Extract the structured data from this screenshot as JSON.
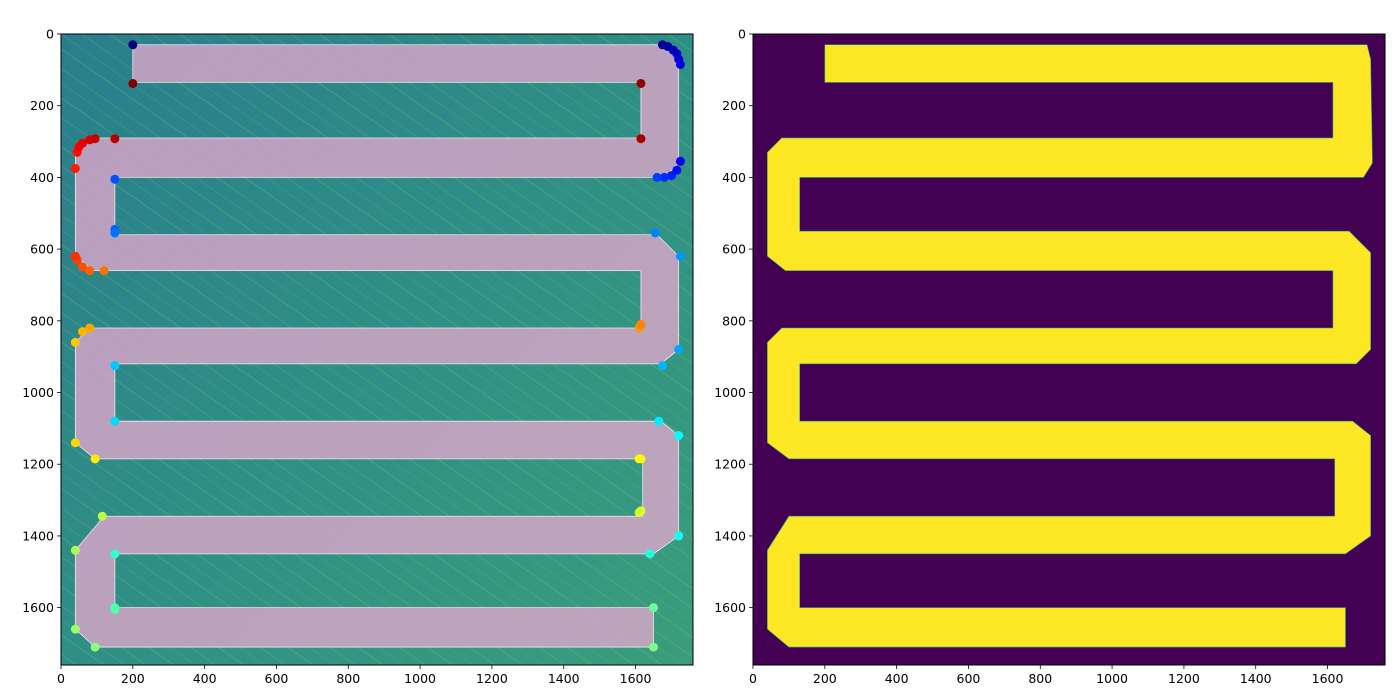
{
  "chart_data": [
    {
      "type": "scatter",
      "background": "grayscale image with viridis colormap and translucent pink serpentine channel overlay",
      "xlim": [
        0,
        1760
      ],
      "ylim": [
        1760,
        0
      ],
      "xticks": [
        0,
        200,
        400,
        600,
        800,
        1000,
        1200,
        1400,
        1600
      ],
      "xtick_labels": [
        "0",
        "200",
        "400",
        "600",
        "800",
        "1000",
        "1200",
        "1400",
        "1600"
      ],
      "yticks": [
        0,
        200,
        400,
        600,
        800,
        1000,
        1200,
        1400,
        1600
      ],
      "ytick_labels": [
        "0",
        "200",
        "400",
        "600",
        "800",
        "1000",
        "1200",
        "1400",
        "1600"
      ],
      "colors": {
        "image_background": "#2f8c8c",
        "channel_overlay": "#d9a6c9",
        "point_colormap": "jet"
      },
      "channel_path": [
        [
          200,
          30
        ],
        [
          1680,
          30
        ],
        [
          1720,
          70
        ],
        [
          1720,
          360
        ],
        [
          1680,
          400
        ],
        [
          150,
          400
        ],
        [
          150,
          560
        ],
        [
          1660,
          560
        ],
        [
          1720,
          620
        ],
        [
          1720,
          880
        ],
        [
          1670,
          920
        ],
        [
          150,
          920
        ],
        [
          150,
          1080
        ],
        [
          1670,
          1080
        ],
        [
          1720,
          1120
        ],
        [
          1720,
          1400
        ],
        [
          1650,
          1450
        ],
        [
          150,
          1450
        ],
        [
          150,
          1600
        ],
        [
          1650,
          1600
        ],
        [
          1650,
          1710
        ],
        [
          95,
          1710
        ],
        [
          40,
          1660
        ],
        [
          40,
          1440
        ],
        [
          120,
          1345
        ],
        [
          1620,
          1345
        ],
        [
          1620,
          1185
        ],
        [
          95,
          1185
        ],
        [
          40,
          1140
        ],
        [
          40,
          860
        ],
        [
          80,
          820
        ],
        [
          1615,
          820
        ],
        [
          1615,
          660
        ],
        [
          90,
          660
        ],
        [
          40,
          620
        ],
        [
          40,
          330
        ],
        [
          80,
          290
        ],
        [
          1615,
          290
        ],
        [
          1615,
          135
        ],
        [
          200,
          135
        ]
      ],
      "points": {
        "x": [
          200,
          1675,
          1690,
          1705,
          1715,
          1720,
          1725,
          1725,
          1715,
          1700,
          1680,
          1660,
          150,
          150,
          150,
          1655,
          1725,
          1720,
          1675,
          150,
          150,
          1665,
          1720,
          1720,
          1640,
          150,
          150,
          150,
          1650,
          1650,
          95,
          40,
          40,
          115,
          1610,
          1615,
          1615,
          1610,
          95,
          40,
          40,
          60,
          80,
          1610,
          1615,
          120,
          80,
          60,
          45,
          40,
          40,
          45,
          50,
          60,
          80,
          95,
          150,
          1615,
          1615,
          200
        ],
        "y": [
          30,
          30,
          35,
          45,
          55,
          70,
          85,
          355,
          380,
          395,
          400,
          400,
          405,
          545,
          555,
          555,
          620,
          880,
          925,
          925,
          1080,
          1080,
          1120,
          1400,
          1450,
          1450,
          1600,
          1605,
          1600,
          1710,
          1710,
          1660,
          1440,
          1345,
          1335,
          1330,
          1185,
          1185,
          1185,
          1140,
          860,
          830,
          820,
          820,
          810,
          660,
          660,
          650,
          630,
          620,
          375,
          330,
          315,
          305,
          295,
          292,
          292,
          292,
          138,
          138
        ],
        "color_order": "first point dark blue through cyan, green, yellow, orange, red to last point dark red (jet colormap by index)"
      }
    },
    {
      "type": "heatmap",
      "background": "binary mask with viridis colormap",
      "xlim": [
        0,
        1760
      ],
      "ylim": [
        1760,
        0
      ],
      "xticks": [
        0,
        200,
        400,
        600,
        800,
        1000,
        1200,
        1400,
        1600
      ],
      "xtick_labels": [
        "0",
        "200",
        "400",
        "600",
        "800",
        "1000",
        "1200",
        "1400",
        "1600"
      ],
      "yticks": [
        0,
        200,
        400,
        600,
        800,
        1000,
        1200,
        1400,
        1600
      ],
      "ytick_labels": [
        "0",
        "200",
        "400",
        "600",
        "800",
        "1000",
        "1200",
        "1400",
        "1600"
      ],
      "colors": {
        "mask_off": "#440154",
        "mask_on": "#fde725"
      },
      "mask_polygon": [
        [
          200,
          30
        ],
        [
          1710,
          30
        ],
        [
          1720,
          70
        ],
        [
          1725,
          360
        ],
        [
          1700,
          400
        ],
        [
          130,
          400
        ],
        [
          130,
          550
        ],
        [
          1660,
          550
        ],
        [
          1720,
          610
        ],
        [
          1720,
          880
        ],
        [
          1680,
          920
        ],
        [
          130,
          920
        ],
        [
          130,
          1080
        ],
        [
          1670,
          1080
        ],
        [
          1720,
          1120
        ],
        [
          1720,
          1400
        ],
        [
          1650,
          1450
        ],
        [
          130,
          1450
        ],
        [
          130,
          1600
        ],
        [
          1650,
          1600
        ],
        [
          1650,
          1710
        ],
        [
          100,
          1710
        ],
        [
          40,
          1660
        ],
        [
          40,
          1440
        ],
        [
          100,
          1345
        ],
        [
          1620,
          1345
        ],
        [
          1620,
          1185
        ],
        [
          100,
          1185
        ],
        [
          40,
          1140
        ],
        [
          40,
          860
        ],
        [
          80,
          820
        ],
        [
          1615,
          820
        ],
        [
          1615,
          660
        ],
        [
          90,
          660
        ],
        [
          40,
          620
        ],
        [
          40,
          330
        ],
        [
          80,
          290
        ],
        [
          1615,
          290
        ],
        [
          1615,
          135
        ],
        [
          200,
          135
        ]
      ]
    }
  ]
}
